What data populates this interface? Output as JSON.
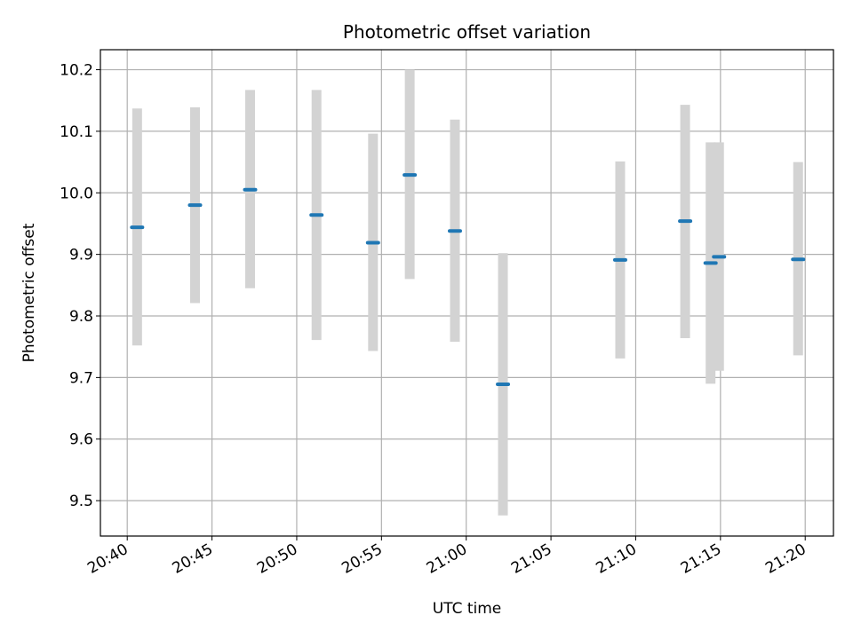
{
  "chart_data": {
    "type": "scatter",
    "title": "Photometric offset variation",
    "xlabel": "UTC time",
    "ylabel": "Photometric offset",
    "xlim": [
      "20:38:25",
      "21:21:40"
    ],
    "ylim": [
      9.4425,
      10.2325
    ],
    "x_ticks": [
      "20:40",
      "20:45",
      "20:50",
      "20:55",
      "21:00",
      "21:05",
      "21:10",
      "21:15",
      "21:20"
    ],
    "y_ticks": [
      "9.5",
      "9.6",
      "9.7",
      "9.8",
      "9.9",
      "10.0",
      "10.1",
      "10.2"
    ],
    "grid": true,
    "colors": {
      "marker": "#1f77b4",
      "errorbar": "#d3d3d3",
      "grid": "#b0b0b0"
    },
    "series": [
      {
        "points": [
          {
            "x": "20:40:35",
            "y": 9.944,
            "ylow": 9.752,
            "yhigh": 10.137
          },
          {
            "x": "20:44:00",
            "y": 9.98,
            "ylow": 9.821,
            "yhigh": 10.139
          },
          {
            "x": "20:47:15",
            "y": 10.005,
            "ylow": 9.845,
            "yhigh": 10.167
          },
          {
            "x": "20:51:10",
            "y": 9.964,
            "ylow": 9.761,
            "yhigh": 10.167
          },
          {
            "x": "20:54:30",
            "y": 9.919,
            "ylow": 9.743,
            "yhigh": 10.096
          },
          {
            "x": "20:56:40",
            "y": 10.029,
            "ylow": 9.86,
            "yhigh": 10.2
          },
          {
            "x": "20:59:20",
            "y": 9.938,
            "ylow": 9.758,
            "yhigh": 10.119
          },
          {
            "x": "21:02:10",
            "y": 9.689,
            "ylow": 9.476,
            "yhigh": 9.902
          },
          {
            "x": "21:09:05",
            "y": 9.891,
            "ylow": 9.731,
            "yhigh": 10.051
          },
          {
            "x": "21:12:55",
            "y": 9.954,
            "ylow": 9.764,
            "yhigh": 10.143
          },
          {
            "x": "21:14:25",
            "y": 9.886,
            "ylow": 9.69,
            "yhigh": 10.082
          },
          {
            "x": "21:14:55",
            "y": 9.896,
            "ylow": 9.711,
            "yhigh": 10.082
          },
          {
            "x": "21:19:35",
            "y": 9.892,
            "ylow": 9.736,
            "yhigh": 10.05
          }
        ]
      }
    ]
  }
}
